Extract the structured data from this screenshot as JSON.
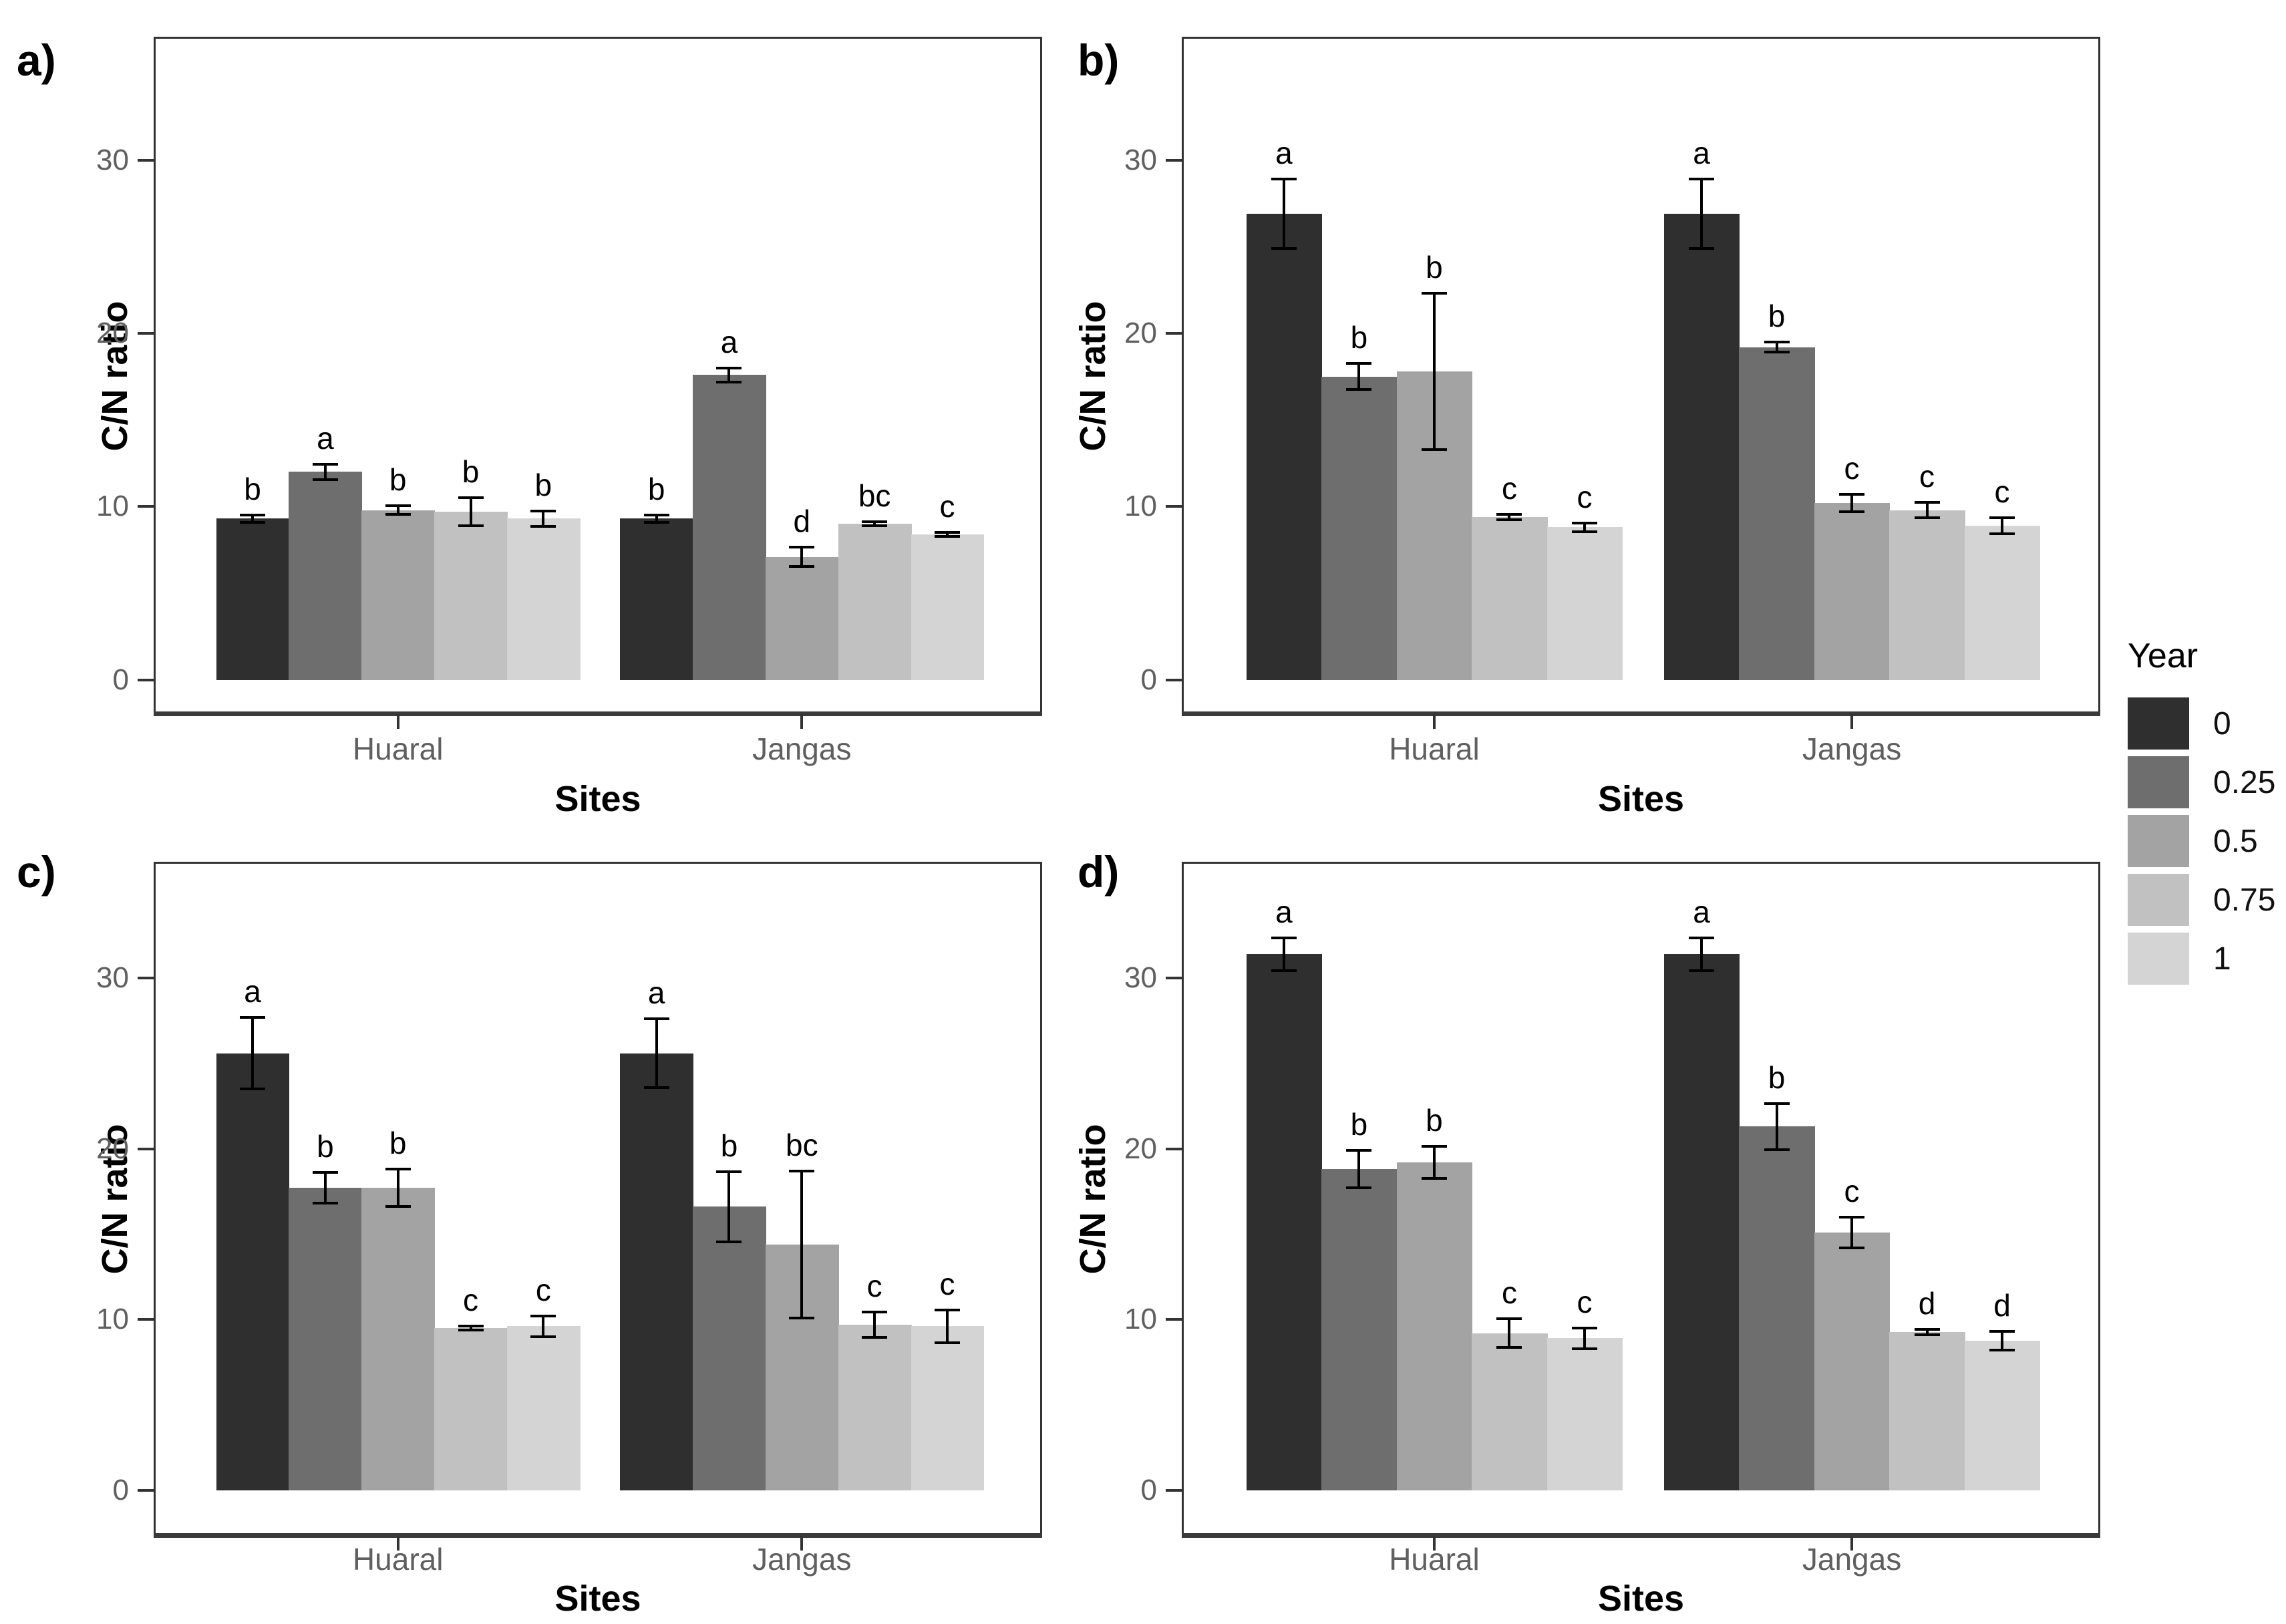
{
  "colors": {
    "background": "#ffffff",
    "axis_line": "#333333",
    "axis_text": "#5f5f5f",
    "annotation_text": "#000000",
    "error_bar": "#000000"
  },
  "chart_data": {
    "type": "bar",
    "title": "",
    "categories": [
      "Huaral",
      "Jangas"
    ],
    "series_names": [
      "0",
      "0.25",
      "0.5",
      "0.75",
      "1"
    ],
    "xlabel": "Sites",
    "ylabel": "C/N ratio",
    "yticks": [
      0,
      10,
      20,
      30
    ],
    "ylim": [
      0,
      36
    ],
    "grid": false,
    "legend": {
      "title": "Year",
      "position": "right",
      "entries": [
        "0",
        "0.25",
        "0.5",
        "0.75",
        "1"
      ],
      "colors": [
        "#2f2f2f",
        "#6e6e6e",
        "#a3a3a3",
        "#c1c1c1",
        "#d4d4d4"
      ]
    },
    "panels": [
      {
        "label": "a)",
        "groups": [
          {
            "category": "Huaral",
            "values": [
              9.3,
              12.0,
              9.8,
              9.7,
              9.3
            ],
            "errors": [
              0.2,
              0.45,
              0.25,
              0.8,
              0.45
            ],
            "letters": [
              "b",
              "a",
              "b",
              "b",
              "b"
            ]
          },
          {
            "category": "Jangas",
            "values": [
              9.3,
              17.6,
              7.1,
              9.0,
              8.4
            ],
            "errors": [
              0.2,
              0.4,
              0.55,
              0.12,
              0.12
            ],
            "letters": [
              "b",
              "a",
              "d",
              "bc",
              "c"
            ]
          }
        ]
      },
      {
        "label": "b)",
        "groups": [
          {
            "category": "Huaral",
            "values": [
              26.9,
              17.5,
              17.8,
              9.4,
              8.8
            ],
            "errors": [
              2.0,
              0.75,
              4.5,
              0.15,
              0.25
            ],
            "letters": [
              "a",
              "b",
              "b",
              "c",
              "c"
            ]
          },
          {
            "category": "Jangas",
            "values": [
              26.9,
              19.2,
              10.2,
              9.8,
              8.9
            ],
            "errors": [
              2.0,
              0.3,
              0.5,
              0.45,
              0.45
            ],
            "letters": [
              "a",
              "b",
              "c",
              "c",
              "c"
            ]
          }
        ]
      },
      {
        "label": "c)",
        "groups": [
          {
            "category": "Huaral",
            "values": [
              25.6,
              17.7,
              17.7,
              9.5,
              9.6
            ],
            "errors": [
              2.1,
              0.9,
              1.1,
              0.12,
              0.6
            ],
            "letters": [
              "a",
              "b",
              "b",
              "c",
              "c"
            ]
          },
          {
            "category": "Jangas",
            "values": [
              25.6,
              16.6,
              14.4,
              9.7,
              9.6
            ],
            "errors": [
              2.0,
              2.05,
              4.3,
              0.75,
              0.95
            ],
            "letters": [
              "a",
              "b",
              "bc",
              "c",
              "c"
            ]
          }
        ]
      },
      {
        "label": "d)",
        "groups": [
          {
            "category": "Huaral",
            "values": [
              31.4,
              18.8,
              19.2,
              9.2,
              8.9
            ],
            "errors": [
              0.95,
              1.1,
              0.95,
              0.85,
              0.6
            ],
            "letters": [
              "a",
              "b",
              "b",
              "c",
              "c"
            ]
          },
          {
            "category": "Jangas",
            "values": [
              31.4,
              21.3,
              15.1,
              9.25,
              8.75
            ],
            "errors": [
              0.95,
              1.35,
              0.9,
              0.15,
              0.55
            ],
            "letters": [
              "a",
              "b",
              "c",
              "d",
              "d"
            ]
          }
        ]
      }
    ]
  }
}
